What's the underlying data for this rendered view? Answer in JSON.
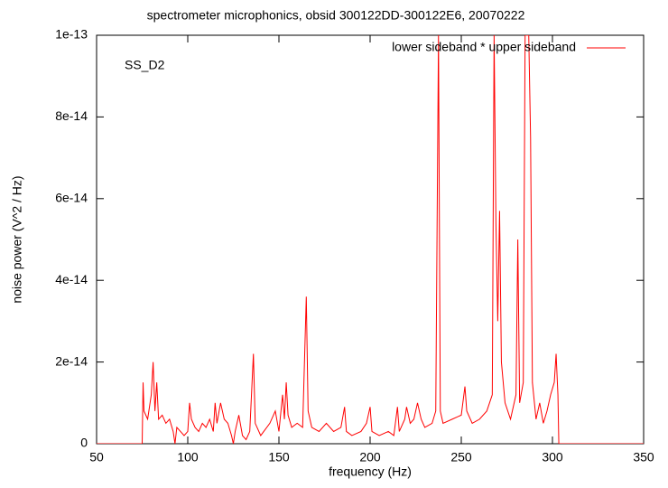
{
  "chart_data": {
    "type": "line",
    "title": "spectrometer microphonics, obsid 300122DD-300122E6, 20070222",
    "xlabel": "frequency (Hz)",
    "ylabel": "noise power (V^2 / Hz)",
    "annotation": "SS_D2",
    "legend_position": "top-right",
    "xlim": [
      50,
      350
    ],
    "xticks": [
      50,
      100,
      150,
      200,
      250,
      300,
      350
    ],
    "ylim": [
      0,
      1e-13
    ],
    "yticks": [
      0,
      2e-14,
      4e-14,
      6e-14,
      8e-14,
      1e-13
    ],
    "x": [
      50,
      75,
      75.5,
      76,
      78,
      80,
      81,
      82,
      83,
      84,
      86,
      88,
      90,
      92,
      93,
      94,
      96,
      98,
      100,
      101,
      102,
      104,
      106,
      108,
      110,
      112,
      114,
      115,
      116,
      118,
      120,
      122,
      124,
      125,
      126,
      128,
      130,
      132,
      134,
      136,
      137,
      140,
      145,
      148,
      150,
      152,
      153,
      154,
      155,
      157,
      160,
      163,
      165,
      166,
      168,
      172,
      176,
      180,
      184,
      186,
      187,
      190,
      195,
      198,
      200,
      201,
      205,
      210,
      213,
      215,
      216,
      219,
      220,
      222,
      224,
      226,
      228,
      230,
      234,
      236,
      237.5,
      238.5,
      240,
      245,
      250,
      252,
      253,
      256,
      260,
      264,
      267,
      268,
      269,
      270,
      271,
      272,
      274,
      277,
      280,
      281,
      282,
      284,
      285,
      287,
      288,
      289,
      291,
      293,
      295,
      297,
      299,
      301,
      302,
      303,
      303.5,
      350
    ],
    "series": [
      {
        "name": "lower sideband * upper sideband",
        "color": "#ff0000",
        "values": [
          0,
          0,
          1.5e-14,
          8e-15,
          6e-15,
          1.2e-14,
          2e-14,
          8e-15,
          1.5e-14,
          6e-15,
          7e-15,
          5e-15,
          6e-15,
          3e-15,
          0,
          4e-15,
          3e-15,
          2e-15,
          3e-15,
          1e-14,
          6e-15,
          4e-15,
          3e-15,
          5e-15,
          4e-15,
          6e-15,
          3e-15,
          1e-14,
          5e-15,
          1e-14,
          6e-15,
          5e-15,
          2e-15,
          0,
          3e-15,
          7e-15,
          2e-15,
          1e-15,
          3e-15,
          2.2e-14,
          5e-15,
          2e-15,
          5e-15,
          8e-15,
          3e-15,
          1.2e-14,
          6e-15,
          1.5e-14,
          7e-15,
          4e-15,
          5e-15,
          4e-15,
          3.6e-14,
          8e-15,
          4e-15,
          3e-15,
          5e-15,
          3e-15,
          4e-15,
          9e-15,
          3e-15,
          2e-15,
          3e-15,
          5e-15,
          9e-15,
          3e-15,
          2e-15,
          3e-15,
          2e-15,
          9e-15,
          3e-15,
          6e-15,
          9e-15,
          5e-15,
          6e-15,
          1e-14,
          6e-15,
          4e-15,
          5e-15,
          8e-15,
          1e-13,
          8e-15,
          5e-15,
          6e-15,
          7e-15,
          1.4e-14,
          8e-15,
          5e-15,
          6e-15,
          8e-15,
          1.2e-14,
          1e-13,
          5.4e-14,
          3e-14,
          5.7e-14,
          2e-14,
          1e-14,
          6e-15,
          1.2e-14,
          5e-14,
          1e-14,
          1.5e-14,
          1e-13,
          1e-13,
          7.5e-14,
          1.5e-14,
          6e-15,
          1e-14,
          5e-15,
          8e-15,
          1.2e-14,
          1.5e-14,
          2.2e-14,
          1.2e-14,
          0,
          0
        ]
      }
    ]
  }
}
